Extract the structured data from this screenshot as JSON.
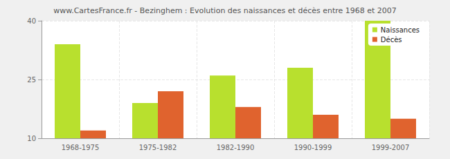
{
  "chart_data": {
    "type": "bar",
    "title": "www.CartesFrance.fr - Bezinghem : Evolution des naissances et décès entre 1968 et 2007",
    "categories": [
      "1968-1975",
      "1975-1982",
      "1982-1990",
      "1990-1999",
      "1999-2007"
    ],
    "series": [
      {
        "name": "Naissances",
        "color": "#b8e02e",
        "values": [
          34,
          19,
          26,
          28,
          40
        ]
      },
      {
        "name": "Décès",
        "color": "#e0632e",
        "values": [
          12,
          22,
          18,
          16,
          15
        ]
      }
    ],
    "ylim": [
      10,
      40
    ],
    "yticks": [
      10,
      25,
      40
    ],
    "grid": true,
    "legend": "top-right"
  }
}
